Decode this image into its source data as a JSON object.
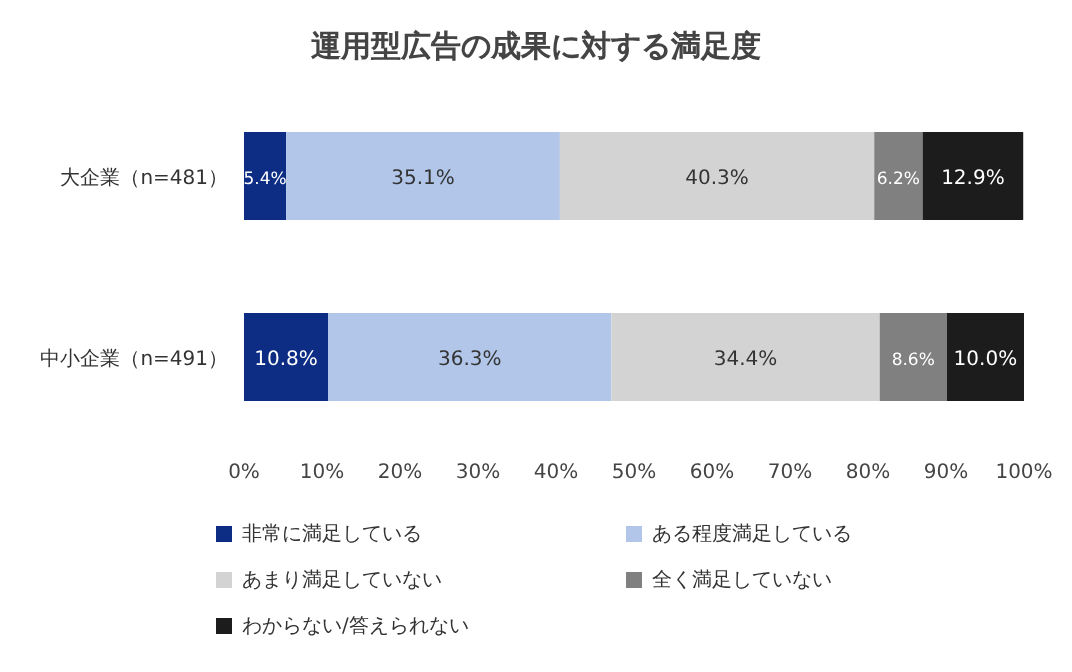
{
  "chart_data": {
    "type": "bar",
    "orientation": "horizontal",
    "stacked": true,
    "title": "運用型広告の成果に対する満足度",
    "categories": [
      "大企業（n=481）",
      "中小企業（n=491）"
    ],
    "series": [
      {
        "name": "非常に満足している",
        "color": "#0d2d84",
        "values": [
          5.4,
          10.8
        ],
        "value_labels": [
          "5.4%",
          "10.8%"
        ]
      },
      {
        "name": "ある程度満足している",
        "color": "#b1c6e8",
        "values": [
          35.1,
          36.3
        ],
        "value_labels": [
          "35.1%",
          "36.3%"
        ]
      },
      {
        "name": "あまり満足していない",
        "color": "#d3d3d3",
        "values": [
          40.3,
          34.4
        ],
        "value_labels": [
          "40.3%",
          "34.4%"
        ]
      },
      {
        "name": "全く満足していない",
        "color": "#808080",
        "values": [
          6.2,
          8.6
        ],
        "value_labels": [
          "6.2%",
          "8.6%"
        ]
      },
      {
        "name": "わからない/答えられない",
        "color": "#1c1c1c",
        "values": [
          12.9,
          10.0
        ],
        "value_labels": [
          "12.9%",
          "10.0%"
        ]
      }
    ],
    "xlim": [
      0,
      100
    ],
    "xticks": [
      {
        "value": 0,
        "label": "0%"
      },
      {
        "value": 10,
        "label": "10%"
      },
      {
        "value": 20,
        "label": "20%"
      },
      {
        "value": 30,
        "label": "30%"
      },
      {
        "value": 40,
        "label": "40%"
      },
      {
        "value": 50,
        "label": "50%"
      },
      {
        "value": 60,
        "label": "60%"
      },
      {
        "value": 70,
        "label": "70%"
      },
      {
        "value": 80,
        "label": "80%"
      },
      {
        "value": 90,
        "label": "90%"
      },
      {
        "value": 100,
        "label": "100%"
      }
    ],
    "legend": "bottom"
  }
}
